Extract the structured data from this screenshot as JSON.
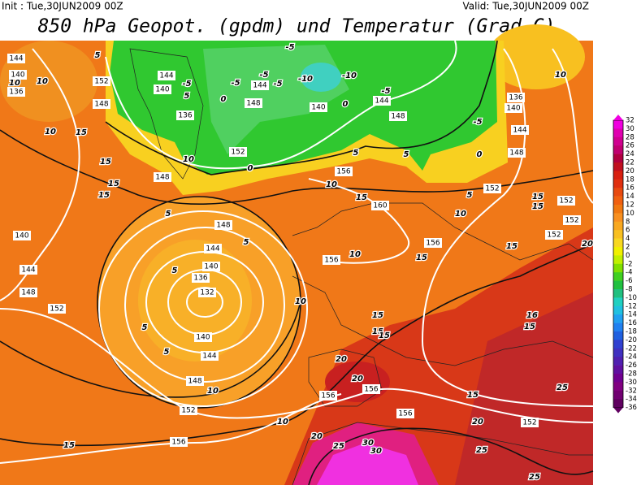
{
  "header": {
    "init": "Init : Tue,30JUN2009 00Z",
    "valid": "Valid: Tue,30JUN2009 00Z",
    "title": "850 hPa Geopot. (gpdm) und Temperatur (Grad C)"
  },
  "colorbar": {
    "labels": [
      32,
      30,
      28,
      26,
      24,
      22,
      20,
      18,
      16,
      14,
      12,
      10,
      8,
      6,
      4,
      2,
      0,
      -2,
      -4,
      -6,
      -8,
      -10,
      -12,
      -14,
      -16,
      -18,
      -20,
      -22,
      -24,
      -26,
      -28,
      -30,
      -32,
      -34,
      -36
    ],
    "colors": [
      "#f000e0",
      "#e000b0",
      "#d00090",
      "#c00070",
      "#b00040",
      "#c01020",
      "#d82010",
      "#e03010",
      "#e84a10",
      "#f06010",
      "#f07810",
      "#f89020",
      "#f8a820",
      "#f8c020",
      "#f8d820",
      "#f0f000",
      "#c0f000",
      "#80e000",
      "#40d020",
      "#20c040",
      "#20c080",
      "#20d0c0",
      "#20c0e0",
      "#20a0f0",
      "#2080f0",
      "#2060e0",
      "#3040d0",
      "#4030c0",
      "#5020b0",
      "#6010a0",
      "#700090",
      "#800080",
      "#700070",
      "#600060"
    ]
  },
  "map": {
    "geopotential_labels": [
      "144",
      "140",
      "136",
      "152",
      "148",
      "144",
      "140",
      "136",
      "148",
      "144",
      "152",
      "140",
      "144",
      "148",
      "136",
      "140",
      "144",
      "148",
      "152",
      "152",
      "152",
      "152",
      "156",
      "160",
      "156",
      "156",
      "148",
      "144",
      "140",
      "136",
      "132",
      "140",
      "144",
      "148",
      "152",
      "156",
      "156",
      "156",
      "156",
      "152",
      "152",
      "148",
      "144",
      "140",
      "148"
    ],
    "temperature_labels": [
      "10",
      "10",
      "5",
      "5",
      "10",
      "15",
      "15",
      "15",
      "15",
      "10",
      "5",
      "5",
      "5",
      "10",
      "5",
      "5",
      "10",
      "10",
      "15",
      "20",
      "15",
      "15",
      "15",
      "20",
      "20",
      "25",
      "30",
      "30",
      "25",
      "20",
      "15",
      "16",
      "15",
      "25",
      "25",
      "20",
      "15",
      "15",
      "15",
      "10",
      "5",
      "0",
      "-5",
      "10",
      "10",
      "15",
      "15",
      "0",
      "-5",
      "-10",
      "-10",
      "-5",
      "-5",
      "-5",
      "-5",
      "0",
      "-5",
      "0",
      "5",
      "5",
      "10"
    ]
  }
}
